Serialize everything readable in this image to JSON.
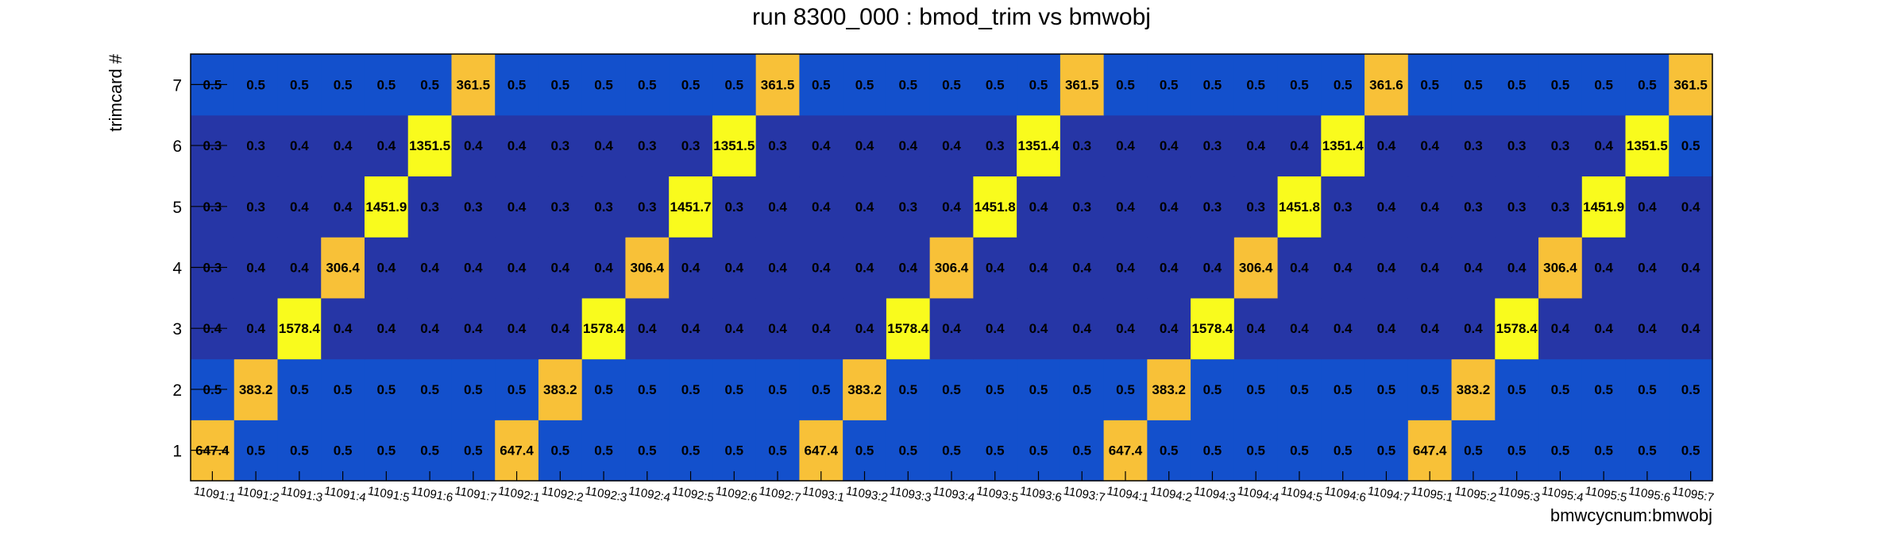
{
  "chart_data": {
    "type": "heatmap",
    "title": "run 8300_000 : bmod_trim vs bmwobj",
    "xlabel": "bmwcycnum:bmwobj",
    "ylabel": "trimcard #",
    "categories": [
      "11091:1",
      "11091:2",
      "11091:3",
      "11091:4",
      "11091:5",
      "11091:6",
      "11091:7",
      "11092:1",
      "11092:2",
      "11092:3",
      "11092:4",
      "11092:5",
      "11092:6",
      "11092:7",
      "11093:1",
      "11093:2",
      "11093:3",
      "11093:4",
      "11093:5",
      "11093:6",
      "11093:7",
      "11094:1",
      "11094:2",
      "11094:3",
      "11094:4",
      "11094:5",
      "11094:6",
      "11094:7",
      "11095:1",
      "11095:2",
      "11095:3",
      "11095:4",
      "11095:5",
      "11095:6",
      "11095:7"
    ],
    "y_categories": [
      "1",
      "2",
      "3",
      "4",
      "5",
      "6",
      "7"
    ],
    "series": [
      {
        "name": "1",
        "values": [
          "647.4",
          "0.5",
          "0.5",
          "0.5",
          "0.5",
          "0.5",
          "0.5",
          "647.4",
          "0.5",
          "0.5",
          "0.5",
          "0.5",
          "0.5",
          "0.5",
          "647.4",
          "0.5",
          "0.5",
          "0.5",
          "0.5",
          "0.5",
          "0.5",
          "647.4",
          "0.5",
          "0.5",
          "0.5",
          "0.5",
          "0.5",
          "0.5",
          "647.4",
          "0.5",
          "0.5",
          "0.5",
          "0.5",
          "0.5",
          "0.5"
        ]
      },
      {
        "name": "2",
        "values": [
          "0.5",
          "383.2",
          "0.5",
          "0.5",
          "0.5",
          "0.5",
          "0.5",
          "0.5",
          "383.2",
          "0.5",
          "0.5",
          "0.5",
          "0.5",
          "0.5",
          "0.5",
          "383.2",
          "0.5",
          "0.5",
          "0.5",
          "0.5",
          "0.5",
          "0.5",
          "383.2",
          "0.5",
          "0.5",
          "0.5",
          "0.5",
          "0.5",
          "0.5",
          "383.2",
          "0.5",
          "0.5",
          "0.5",
          "0.5",
          "0.5"
        ]
      },
      {
        "name": "3",
        "values": [
          "0.4",
          "0.4",
          "1578.4",
          "0.4",
          "0.4",
          "0.4",
          "0.4",
          "0.4",
          "0.4",
          "1578.4",
          "0.4",
          "0.4",
          "0.4",
          "0.4",
          "0.4",
          "0.4",
          "1578.4",
          "0.4",
          "0.4",
          "0.4",
          "0.4",
          "0.4",
          "0.4",
          "1578.4",
          "0.4",
          "0.4",
          "0.4",
          "0.4",
          "0.4",
          "0.4",
          "1578.4",
          "0.4",
          "0.4",
          "0.4",
          "0.4"
        ]
      },
      {
        "name": "4",
        "values": [
          "0.3",
          "0.4",
          "0.4",
          "306.4",
          "0.4",
          "0.4",
          "0.4",
          "0.4",
          "0.4",
          "0.4",
          "306.4",
          "0.4",
          "0.4",
          "0.4",
          "0.4",
          "0.4",
          "0.4",
          "306.4",
          "0.4",
          "0.4",
          "0.4",
          "0.4",
          "0.4",
          "0.4",
          "306.4",
          "0.4",
          "0.4",
          "0.4",
          "0.4",
          "0.4",
          "0.4",
          "306.4",
          "0.4",
          "0.4",
          "0.4"
        ]
      },
      {
        "name": "5",
        "values": [
          "0.3",
          "0.3",
          "0.4",
          "0.4",
          "1451.9",
          "0.3",
          "0.3",
          "0.4",
          "0.3",
          "0.3",
          "0.3",
          "1451.7",
          "0.3",
          "0.4",
          "0.4",
          "0.4",
          "0.3",
          "0.4",
          "1451.8",
          "0.4",
          "0.3",
          "0.4",
          "0.4",
          "0.3",
          "0.3",
          "1451.8",
          "0.3",
          "0.4",
          "0.4",
          "0.3",
          "0.3",
          "0.3",
          "1451.9",
          "0.4",
          "0.4"
        ]
      },
      {
        "name": "6",
        "values": [
          "0.3",
          "0.3",
          "0.4",
          "0.4",
          "0.4",
          "1351.5",
          "0.4",
          "0.4",
          "0.3",
          "0.4",
          "0.3",
          "0.3",
          "1351.5",
          "0.3",
          "0.4",
          "0.4",
          "0.4",
          "0.4",
          "0.3",
          "1351.4",
          "0.3",
          "0.4",
          "0.4",
          "0.3",
          "0.4",
          "0.4",
          "1351.4",
          "0.4",
          "0.4",
          "0.3",
          "0.3",
          "0.3",
          "0.4",
          "1351.5",
          "0.5"
        ]
      },
      {
        "name": "7",
        "values": [
          "0.5",
          "0.5",
          "0.5",
          "0.5",
          "0.5",
          "0.5",
          "361.5",
          "0.5",
          "0.5",
          "0.5",
          "0.5",
          "0.5",
          "0.5",
          "361.5",
          "0.5",
          "0.5",
          "0.5",
          "0.5",
          "0.5",
          "0.5",
          "361.5",
          "0.5",
          "0.5",
          "0.5",
          "0.5",
          "0.5",
          "0.5",
          "361.6",
          "0.5",
          "0.5",
          "0.5",
          "0.5",
          "0.5",
          "0.5",
          "361.5"
        ]
      }
    ],
    "colors": {
      "low": "#2636a6",
      "mid": "#1350cc",
      "high": "#f8c138",
      "peak": "#f9fb1d",
      "frame": "#000000",
      "text": "#000000"
    },
    "grid": false,
    "legend": "none"
  }
}
